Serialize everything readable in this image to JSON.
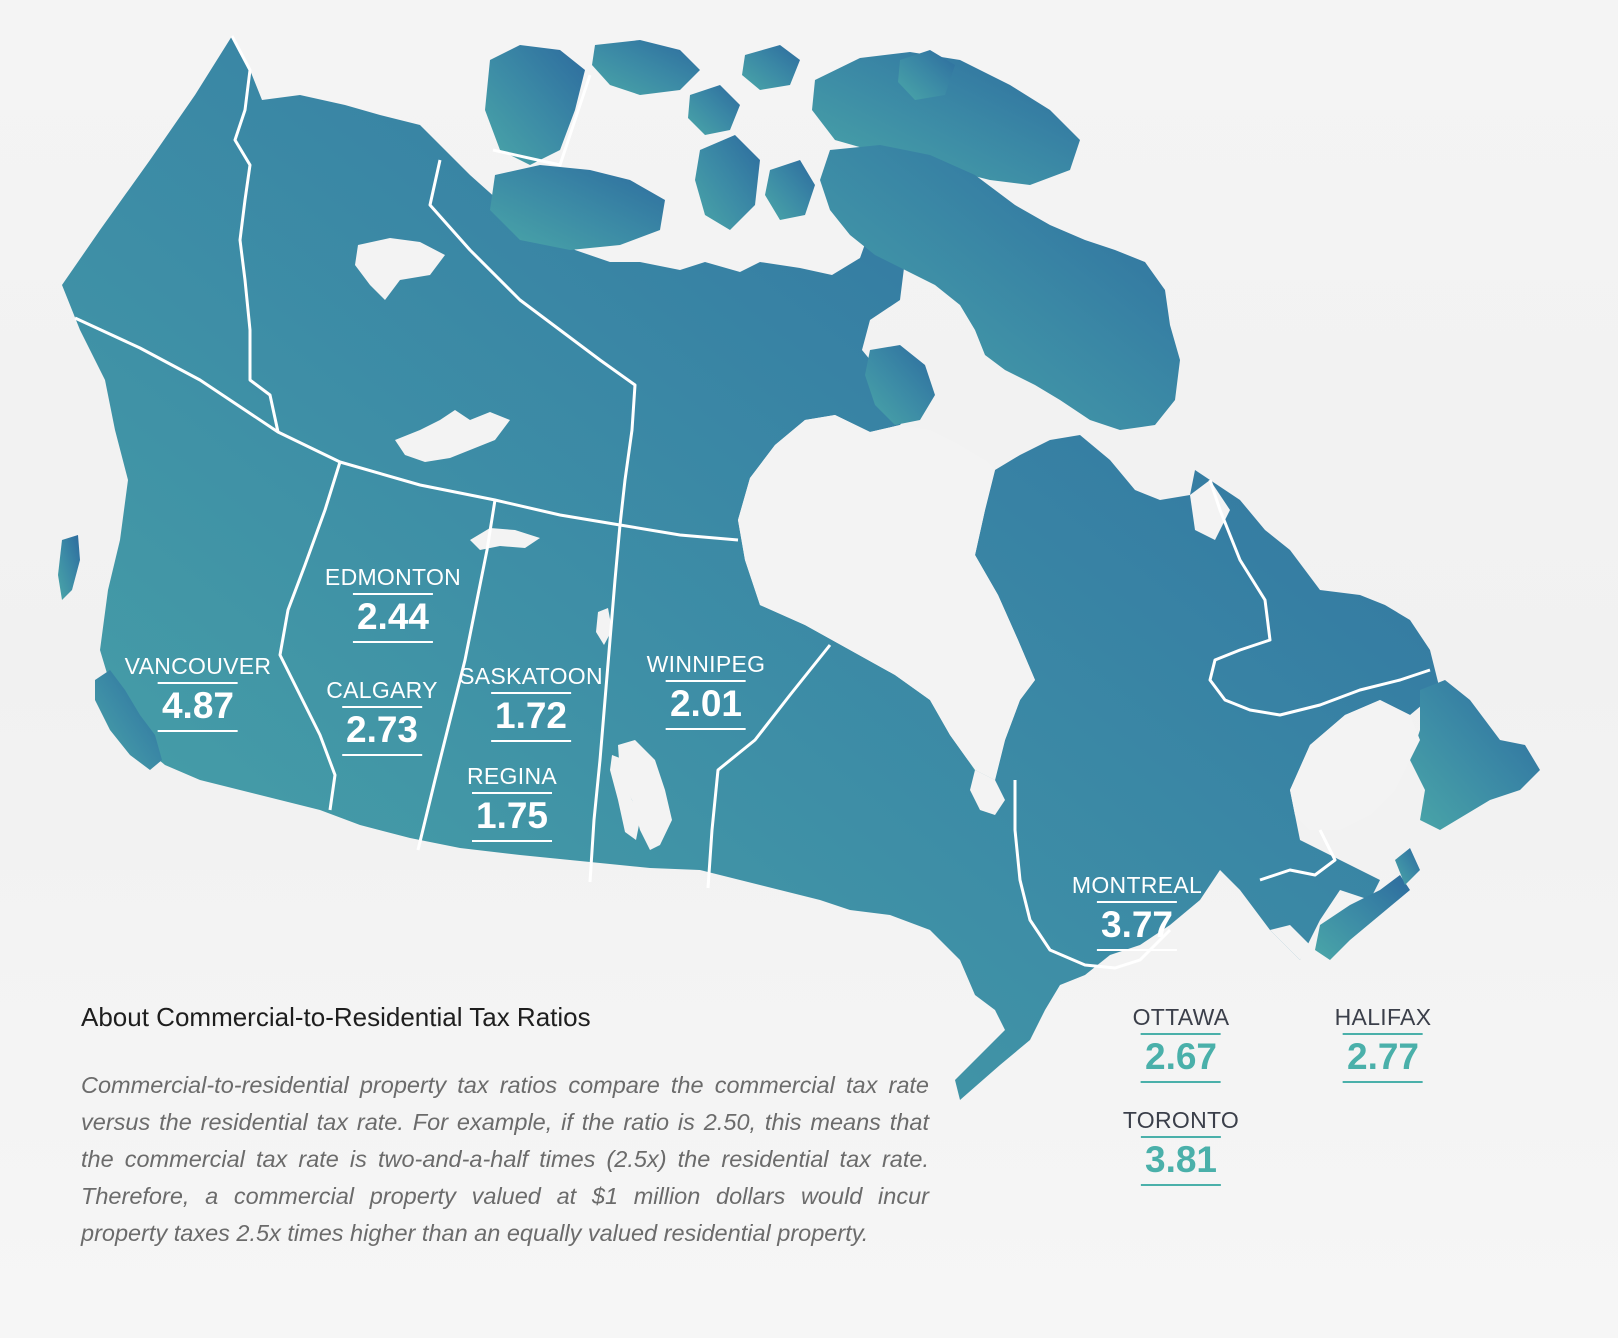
{
  "colors": {
    "map_gradient_start": "#4aa6a8",
    "map_gradient_end": "#2d6b9e",
    "border_line": "#ffffff",
    "off_map_value": "#4ab0aa",
    "off_map_name": "#3b3f4a"
  },
  "cities": [
    {
      "id": "vancouver",
      "name": "VANCOUVER",
      "value": "4.87",
      "placement": "on-map"
    },
    {
      "id": "edmonton",
      "name": "EDMONTON",
      "value": "2.44",
      "placement": "on-map"
    },
    {
      "id": "calgary",
      "name": "CALGARY",
      "value": "2.73",
      "placement": "on-map"
    },
    {
      "id": "saskatoon",
      "name": "SASKATOON",
      "value": "1.72",
      "placement": "on-map"
    },
    {
      "id": "regina",
      "name": "REGINA",
      "value": "1.75",
      "placement": "on-map"
    },
    {
      "id": "winnipeg",
      "name": "WINNIPEG",
      "value": "2.01",
      "placement": "on-map"
    },
    {
      "id": "montreal",
      "name": "MONTREAL",
      "value": "3.77",
      "placement": "on-map"
    },
    {
      "id": "ottawa",
      "name": "OTTAWA",
      "value": "2.67",
      "placement": "off-map"
    },
    {
      "id": "halifax",
      "name": "HALIFAX",
      "value": "2.77",
      "placement": "off-map"
    },
    {
      "id": "toronto",
      "name": "TORONTO",
      "value": "3.81",
      "placement": "off-map"
    }
  ],
  "info": {
    "title": "About Commercial-to-Residential Tax Ratios",
    "body": "Commercial-to-residential property tax ratios compare the commercial tax rate versus the residential tax rate. For example, if the ratio is 2.50, this means that the commercial tax rate is two-and-a-half times (2.5x) the residential tax rate. Therefore, a commercial property valued at $1 million dollars would incur property taxes 2.5x times higher than an equally valued residential property."
  }
}
